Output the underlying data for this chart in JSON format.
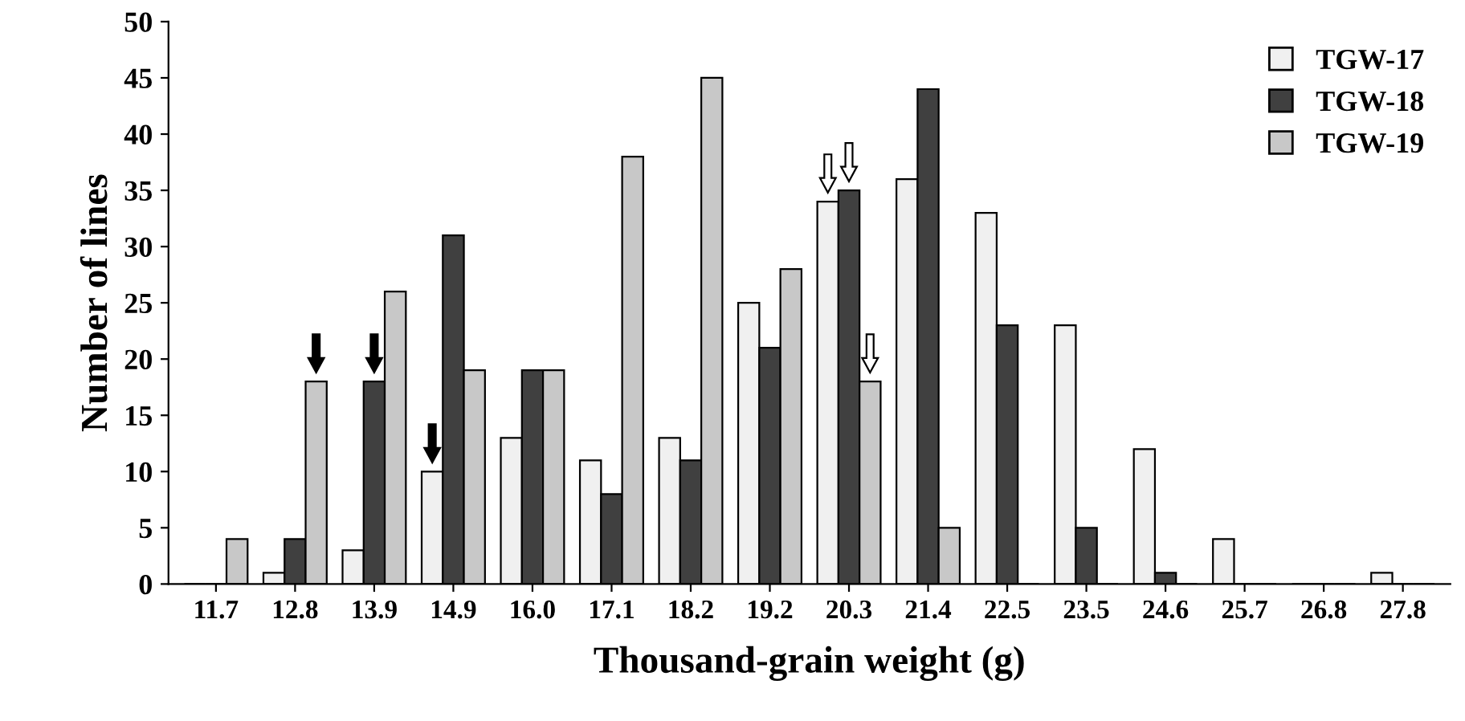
{
  "chart_data": {
    "type": "bar",
    "xlabel": "Thousand-grain weight (g)",
    "ylabel": "Number of lines",
    "categories": [
      "11.7",
      "12.8",
      "13.9",
      "14.9",
      "16.0",
      "17.1",
      "18.2",
      "19.2",
      "20.3",
      "21.4",
      "22.5",
      "23.5",
      "24.6",
      "25.7",
      "26.8",
      "27.8"
    ],
    "series": [
      {
        "name": "TGW-17",
        "color": "#f0f0f0",
        "values": [
          0,
          1,
          3,
          10,
          13,
          11,
          13,
          25,
          34,
          36,
          33,
          23,
          12,
          4,
          0,
          1
        ]
      },
      {
        "name": "TGW-18",
        "color": "#404040",
        "values": [
          0,
          4,
          18,
          31,
          19,
          8,
          11,
          21,
          35,
          44,
          23,
          5,
          1,
          0,
          0,
          0
        ]
      },
      {
        "name": "TGW-19",
        "color": "#c8c8c8",
        "values": [
          4,
          18,
          26,
          19,
          19,
          38,
          45,
          28,
          18,
          5,
          0,
          0,
          0,
          0,
          0,
          0
        ]
      }
    ],
    "ylim": [
      0,
      50
    ],
    "yticks": [
      0,
      5,
      10,
      15,
      20,
      25,
      30,
      35,
      40,
      45,
      50
    ],
    "grid": false,
    "legend": "top right"
  }
}
